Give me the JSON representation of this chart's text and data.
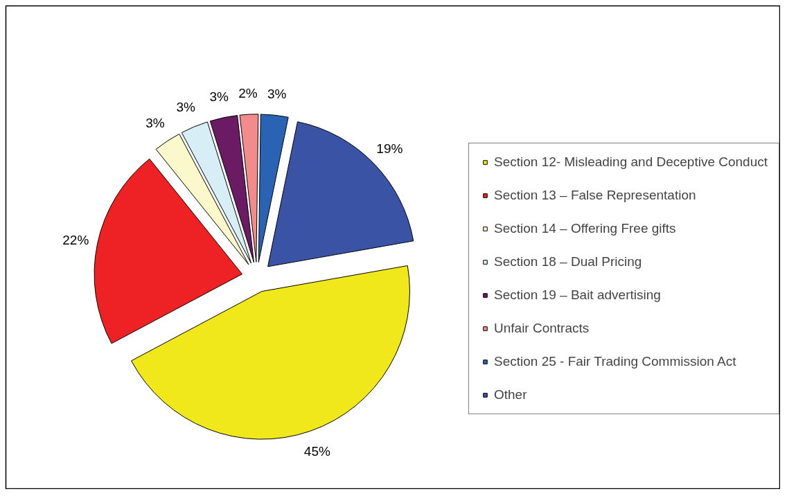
{
  "chart_data": {
    "type": "pie",
    "categories": [
      "Section 12- Misleading and Deceptive Conduct",
      "Section 13 – False Representation",
      "Section 14 – Offering Free gifts",
      "Section 18 – Dual Pricing",
      "Section 19 – Bait advertising",
      "Unfair Contracts",
      "Section 25 - Fair Trading Commission Act",
      "Other"
    ],
    "values": [
      45,
      22,
      3,
      3,
      3,
      2,
      3,
      19
    ],
    "colors": [
      "#f0e81a",
      "#ee2224",
      "#fbf8cc",
      "#d8eef6",
      "#6a1b64",
      "#f28b8b",
      "#2a63b3",
      "#3a53a4"
    ],
    "value_labels": [
      "45%",
      "22%",
      "3%",
      "3%",
      "3%",
      "2%",
      "3%",
      "19%"
    ],
    "legend": "right"
  }
}
